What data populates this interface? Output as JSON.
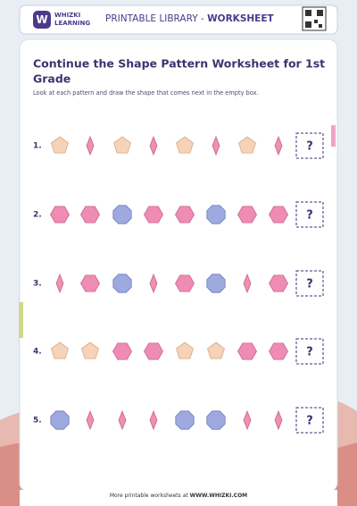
{
  "header": {
    "brand_top": "WHIZKI",
    "brand_bottom": "LEARNING",
    "title_prefix": "PRINTABLE LIBRARY - ",
    "title_bold": "WORKSHEET"
  },
  "title_line1": "Continue the Shape Pattern Worksheet for 1st",
  "title_line2": "Grade",
  "instructions": "Look at each pattern and draw the shape that comes next in the empty box.",
  "rows": [
    {
      "number": "1.",
      "answer": "?"
    },
    {
      "number": "2.",
      "answer": "?"
    },
    {
      "number": "3.",
      "answer": "?"
    },
    {
      "number": "4.",
      "answer": "?"
    },
    {
      "number": "5.",
      "answer": "?"
    }
  ],
  "footer": {
    "prefix": "More printable worksheets at ",
    "link": "WWW.WHIZKI.COM"
  }
}
